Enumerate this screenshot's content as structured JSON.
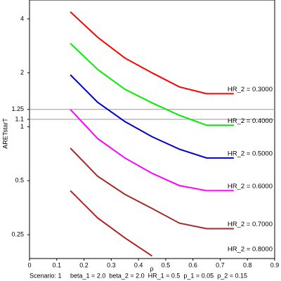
{
  "chart_data": {
    "type": "line",
    "x_label": "ρ",
    "y_label": "ARETstarT",
    "footer": "Scenario: 1     beta_1 = 2.0  beta_2 = 2.0  HR_1 = 0.5  p_1 = 0.05  p_2 = 0.15",
    "x": [
      0.15,
      0.25,
      0.35,
      0.45,
      0.55,
      0.65,
      0.75
    ],
    "series": [
      {
        "name": "HR_2 = 0.3000",
        "color": "#ff0000",
        "values": [
          4.38,
          3.16,
          2.42,
          2.0,
          1.67,
          1.53,
          1.53
        ]
      },
      {
        "name": "HR_2 = 0.4000",
        "color": "#00ee00",
        "values": [
          2.92,
          2.09,
          1.62,
          1.36,
          1.16,
          1.02,
          1.02
        ]
      },
      {
        "name": "HR_2 = 0.5000",
        "color": "#0000cc",
        "values": [
          1.95,
          1.37,
          1.07,
          0.88,
          0.75,
          0.67,
          0.67
        ]
      },
      {
        "name": "HR_2 = 0.6000",
        "color": "#ff00ff",
        "values": [
          1.25,
          0.86,
          0.67,
          0.55,
          0.47,
          0.44,
          0.44
        ]
      },
      {
        "name": "HR_2 = 0.7000",
        "color": "#a52a2a",
        "values": [
          0.76,
          0.53,
          0.42,
          0.35,
          0.29,
          0.27,
          0.27
        ]
      },
      {
        "name": "HR_2 = 0.8000",
        "color": "#b22222",
        "values": [
          0.44,
          0.31,
          0.24,
          0.19,
          null,
          null,
          null
        ]
      }
    ],
    "reference_lines": [
      1.1,
      1.25
    ],
    "xlim": [
      0,
      0.9
    ],
    "xticks": [
      0,
      0.1,
      0.2,
      0.3,
      0.4,
      0.5,
      0.6,
      0.7,
      0.8,
      0.9
    ],
    "ylim": [
      0.184,
      5.1
    ],
    "yticks": [
      0.25,
      0.5,
      1,
      1.1,
      1.25,
      2,
      4
    ],
    "log_y": true
  }
}
